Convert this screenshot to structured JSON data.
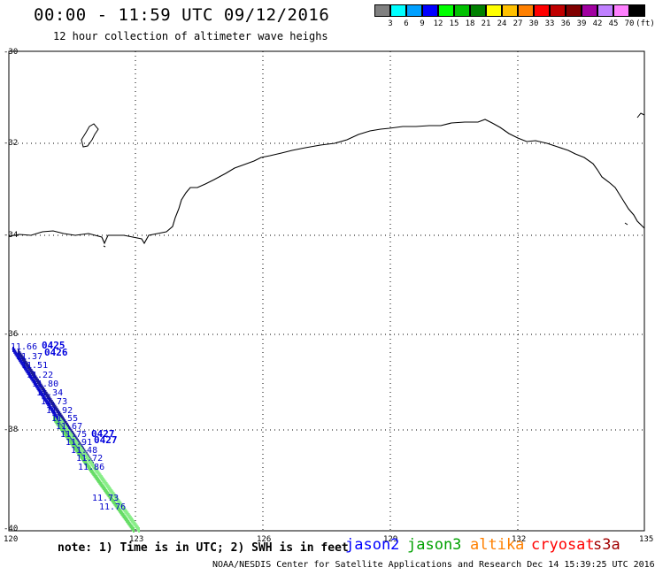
{
  "header": {
    "title": "00:00 - 11:59 UTC 09/12/2016",
    "subtitle": "12 hour collection of altimeter wave heighs"
  },
  "colorbar": {
    "colors": [
      "#808080",
      "#00ffff",
      "#00a0ff",
      "#0000ff",
      "#00ff00",
      "#00c000",
      "#008000",
      "#ffff00",
      "#ffc000",
      "#ff8000",
      "#ff0000",
      "#c00000",
      "#800000",
      "#a000a0",
      "#c080ff",
      "#ff80ff",
      "#000000"
    ],
    "labels": [
      "3",
      "6",
      "9",
      "12",
      "15",
      "18",
      "21",
      "24",
      "27",
      "30",
      "33",
      "36",
      "39",
      "42",
      "45",
      "70",
      "(ft)"
    ]
  },
  "axes": {
    "lat_labels": [
      "-30",
      "-32",
      "-34",
      "-36",
      "-38",
      "-40"
    ],
    "lon_labels": [
      "120",
      "123",
      "126",
      "129",
      "132",
      "135"
    ]
  },
  "tracks": {
    "upper_values": [
      "11.66",
      "11.37",
      "11.51",
      "11.22",
      "11.80",
      "11.34",
      "11.73",
      "11.92",
      "11.55",
      "11.67",
      "11.75",
      "11.91",
      "11.48",
      "11.72"
    ],
    "lower_values": [
      "11.86",
      "11.73",
      "11.76"
    ],
    "time_labels": [
      "0425",
      "0426",
      "0427",
      "0427"
    ]
  },
  "footer": {
    "note": "note: 1) Time is in UTC; 2) SWH is in feet",
    "satellites": [
      {
        "name": "jason2",
        "color": "#0000ff"
      },
      {
        "name": "jason3",
        "color": "#00a000"
      },
      {
        "name": "altika",
        "color": "#ff8000"
      },
      {
        "name": "cryosat",
        "color": "#ff0000"
      },
      {
        "name": "s3a",
        "color": "#a00000"
      }
    ],
    "credit": "NOAA/NESDIS Center for Satellite Applications and Research    Dec 14 15:39:25 UTC 2016"
  }
}
